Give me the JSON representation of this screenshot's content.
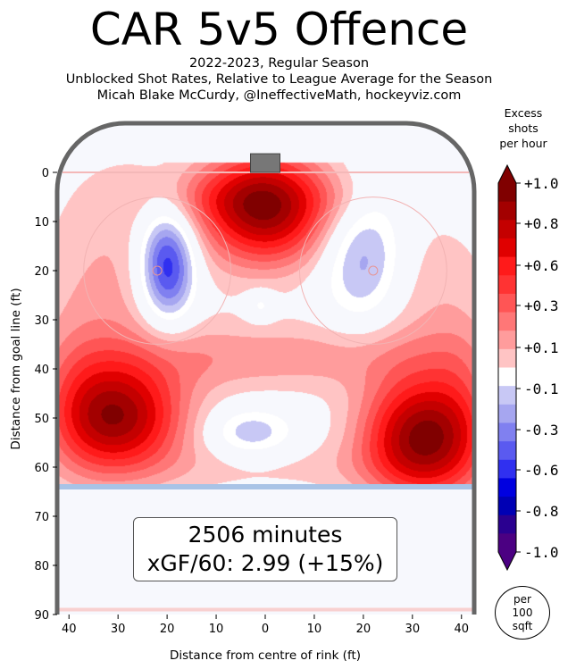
{
  "title": "CAR 5v5 Offence",
  "subtitle_lines": [
    "2022-2023, Regular Season",
    "Unblocked Shot Rates, Relative to League Average for the Season",
    "Micah Blake McCurdy, @IneffectiveMath, hockeyviz.com"
  ],
  "info": {
    "minutes": "2506 minutes",
    "xgf": "xGF/60: 2.99 (+15%)"
  },
  "colorbar": {
    "title_lines": [
      "Excess",
      "shots",
      "per hour"
    ],
    "tick_labels": [
      "+1.0",
      "+0.8",
      "+0.6",
      "+0.3",
      "+0.1",
      "-0.1",
      "-0.3",
      "-0.6",
      "-0.8",
      "-1.0"
    ],
    "colors_top_to_bottom": [
      "#800000",
      "#a30000",
      "#c40000",
      "#e00000",
      "#ff1a1a",
      "#ff3333",
      "#ff5555",
      "#ff7777",
      "#ff9c9c",
      "#ffc4c4",
      "#ffffff",
      "#c8c8f5",
      "#a6a6f0",
      "#8080f0",
      "#5a5af0",
      "#3030f0",
      "#0000e0",
      "#0000b4",
      "#2a0090",
      "#4b0082"
    ],
    "per_badge_lines": [
      "per",
      "100",
      "sqft"
    ]
  },
  "chart_data": {
    "type": "heatmap",
    "title": "CAR 5v5 Offence",
    "xlabel": "Distance from centre of rink (ft)",
    "ylabel": "Distance from goal line (ft)",
    "xlim": [
      -42.5,
      42.5
    ],
    "ylim": [
      0,
      90
    ],
    "x_ticks": [
      -40,
      -30,
      -20,
      -10,
      0,
      10,
      20,
      30,
      40
    ],
    "x_tick_labels": [
      "40",
      "30",
      "20",
      "10",
      "0",
      "10",
      "20",
      "30",
      "40"
    ],
    "y_ticks": [
      0,
      10,
      20,
      30,
      40,
      50,
      60,
      70,
      80,
      90
    ],
    "y_tick_labels": [
      "0",
      "10",
      "20",
      "30",
      "40",
      "50",
      "60",
      "70",
      "80",
      "90"
    ],
    "value_range": [
      -1.0,
      1.0
    ],
    "hotspots": [
      {
        "x": 0,
        "y": 7,
        "value": 1.0
      },
      {
        "x": 32,
        "y": 54,
        "value": 1.0
      },
      {
        "x": -30,
        "y": 50,
        "value": 0.85
      },
      {
        "x": -20,
        "y": 19,
        "value": -0.8
      },
      {
        "x": 20,
        "y": 18,
        "value": -0.45
      },
      {
        "x": -3,
        "y": 53,
        "value": -0.3
      },
      {
        "x": -1,
        "y": 27,
        "value": -0.2
      }
    ],
    "colors": {
      "positive": "#ff0000",
      "negative": "#0000ff",
      "boards": "#666666",
      "goal_line": "#f4b8b8",
      "blue_line": "#a9c3e6",
      "circles": "#f2b3b3"
    }
  }
}
